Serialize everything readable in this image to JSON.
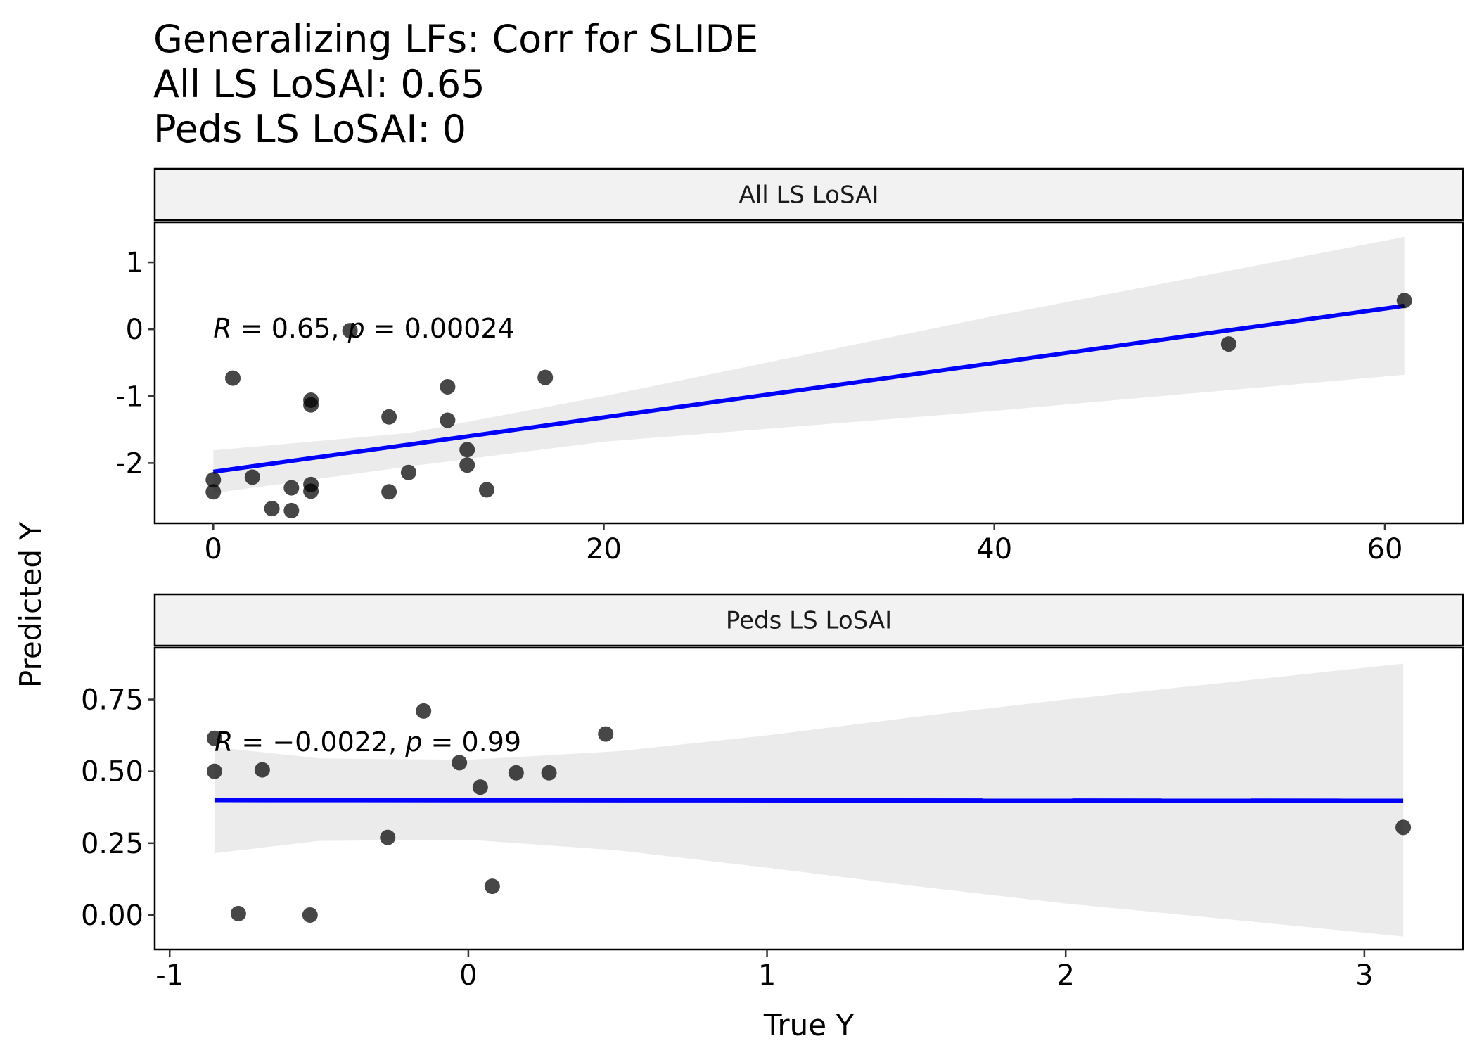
{
  "title_lines": [
    "Generalizing LFs: Corr for SLIDE",
    "All LS LoSAI: 0.65",
    "Peds LS LoSAI: 0"
  ],
  "xlabel": "True Y",
  "ylabel": "Predicted Y",
  "colors": {
    "points": "#000000",
    "fit_line": "#0000ff",
    "ci_band": "#ebebeb",
    "strip_fill": "#f2f2f2"
  },
  "chart_data": [
    {
      "type": "scatter",
      "panel": "All LS LoSAI",
      "xlim": [
        -3,
        64
      ],
      "ylim": [
        -2.9,
        1.6
      ],
      "x_ticks": [
        0,
        20,
        40,
        60
      ],
      "x_tick_labels": [
        "0",
        "20",
        "40",
        "60"
      ],
      "y_ticks": [
        1,
        0,
        -1,
        -2
      ],
      "y_tick_labels": [
        "1",
        "0",
        "-1",
        "-2"
      ],
      "annotation": {
        "r": "0.65",
        "p": "0.00024",
        "x": 0,
        "y": 0
      },
      "points": [
        {
          "x": 0,
          "y": -2.25
        },
        {
          "x": 0,
          "y": -2.43
        },
        {
          "x": 1,
          "y": -0.73
        },
        {
          "x": 2,
          "y": -2.21
        },
        {
          "x": 3,
          "y": -2.68
        },
        {
          "x": 4,
          "y": -2.37
        },
        {
          "x": 4,
          "y": -2.71
        },
        {
          "x": 5,
          "y": -1.06
        },
        {
          "x": 5,
          "y": -1.13
        },
        {
          "x": 5,
          "y": -2.32
        },
        {
          "x": 5,
          "y": -2.42
        },
        {
          "x": 7,
          "y": -0.02
        },
        {
          "x": 9,
          "y": -1.31
        },
        {
          "x": 9,
          "y": -2.43
        },
        {
          "x": 10,
          "y": -2.14
        },
        {
          "x": 12,
          "y": -0.86
        },
        {
          "x": 12,
          "y": -1.36
        },
        {
          "x": 13,
          "y": -1.8
        },
        {
          "x": 13,
          "y": -2.03
        },
        {
          "x": 14,
          "y": -2.4
        },
        {
          "x": 17,
          "y": -0.72
        },
        {
          "x": 52,
          "y": -0.22
        },
        {
          "x": 61,
          "y": 0.43
        }
      ],
      "fit": {
        "x0": 0,
        "y0": -2.13,
        "x1": 61,
        "y1": 0.35
      },
      "ci_band": {
        "x": [
          0,
          10,
          20,
          30,
          40,
          50,
          61
        ],
        "lower": [
          -2.45,
          -2.05,
          -1.68,
          -1.45,
          -1.22,
          -0.96,
          -0.68
        ],
        "upper": [
          -1.81,
          -1.55,
          -1.0,
          -0.4,
          0.2,
          0.76,
          1.38
        ]
      }
    },
    {
      "type": "scatter",
      "panel": "Peds LS LoSAI",
      "xlim": [
        -1.05,
        3.33
      ],
      "ylim": [
        -0.12,
        0.93
      ],
      "x_ticks": [
        -1,
        0,
        1,
        2,
        3
      ],
      "x_tick_labels": [
        "-1",
        "0",
        "1",
        "2",
        "3"
      ],
      "y_ticks": [
        0.75,
        0.5,
        0.25,
        0.0
      ],
      "y_tick_labels": [
        "0.75",
        "0.50",
        "0.25",
        "0.00"
      ],
      "annotation": {
        "r": "−0.0022",
        "p": "0.99",
        "x": -0.85,
        "y": 0.6
      },
      "points": [
        {
          "x": -0.85,
          "y": 0.615
        },
        {
          "x": -0.85,
          "y": 0.5
        },
        {
          "x": -0.77,
          "y": 0.005
        },
        {
          "x": -0.69,
          "y": 0.505
        },
        {
          "x": -0.53,
          "y": 0.0
        },
        {
          "x": -0.27,
          "y": 0.27
        },
        {
          "x": -0.15,
          "y": 0.71
        },
        {
          "x": -0.03,
          "y": 0.53
        },
        {
          "x": 0.04,
          "y": 0.445
        },
        {
          "x": 0.08,
          "y": 0.1
        },
        {
          "x": 0.16,
          "y": 0.495
        },
        {
          "x": 0.27,
          "y": 0.495
        },
        {
          "x": 0.46,
          "y": 0.63
        },
        {
          "x": 3.13,
          "y": 0.305
        }
      ],
      "fit": {
        "x0": -0.85,
        "y0": 0.4,
        "x1": 3.13,
        "y1": 0.398
      },
      "ci_band": {
        "x": [
          -0.85,
          -0.5,
          0,
          0.5,
          1,
          1.5,
          2,
          2.5,
          3.13
        ],
        "lower": [
          0.215,
          0.258,
          0.262,
          0.225,
          0.165,
          0.1,
          0.04,
          -0.01,
          -0.075
        ],
        "upper": [
          0.585,
          0.545,
          0.54,
          0.57,
          0.625,
          0.69,
          0.75,
          0.805,
          0.875
        ]
      }
    }
  ]
}
